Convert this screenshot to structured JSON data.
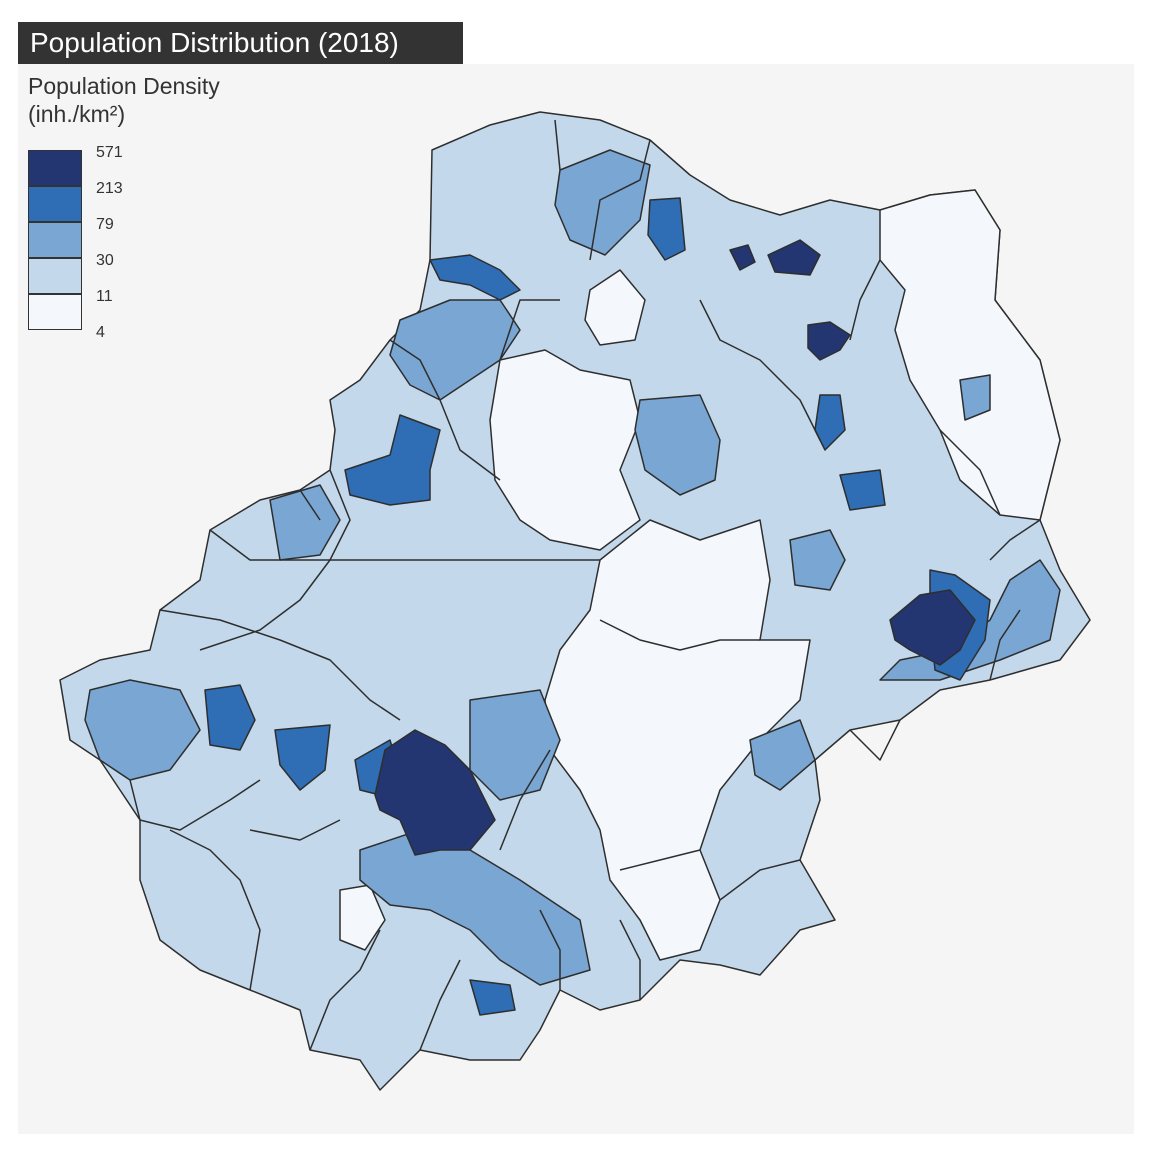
{
  "title": "Population Distribution (2018)",
  "legend": {
    "title_line1": "Population Density",
    "title_line2": "(inh./km²)",
    "breaks": [
      "571",
      "213",
      "79",
      "30",
      "11",
      "4"
    ],
    "colors": [
      "#243672",
      "#2f6db5",
      "#79a6d2",
      "#c3d9eb",
      "#f4f8fc"
    ]
  },
  "map_data": {
    "type": "choropleth",
    "variable": "Population Density",
    "unit": "inh./km²",
    "class_breaks": [
      4,
      11,
      30,
      79,
      213,
      571
    ],
    "colors": {
      "outside": "#f5f5f5",
      "border": "#2e2e2e",
      "class_1": "#f4f8fc",
      "class_2": "#c3d9eb",
      "class_3": "#79a6d2",
      "class_4": "#2f6db5",
      "class_5": "#243672"
    }
  }
}
